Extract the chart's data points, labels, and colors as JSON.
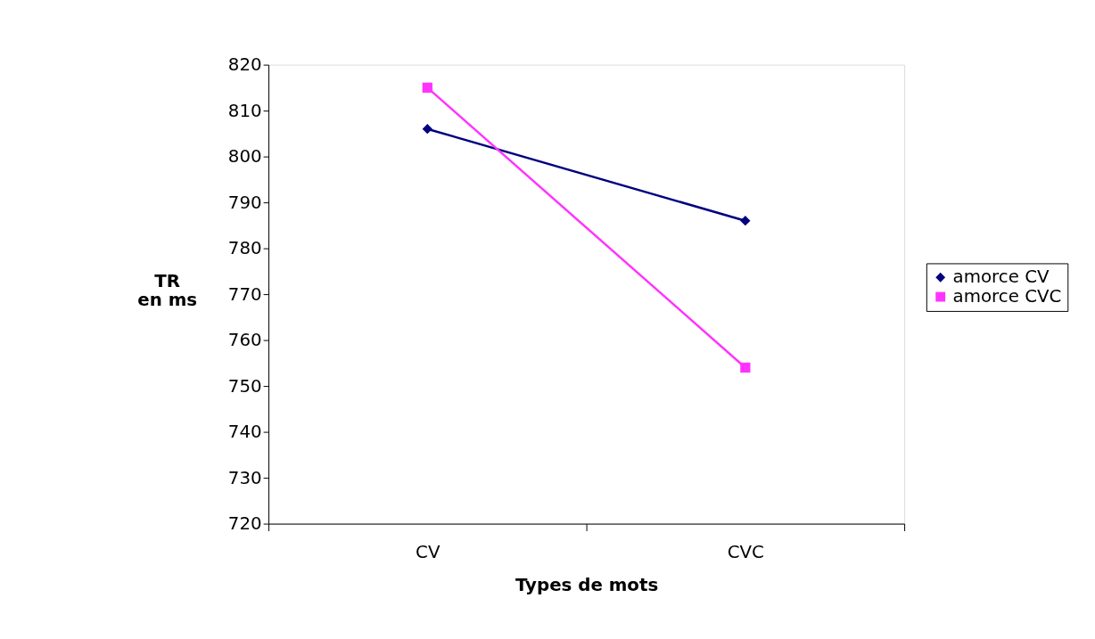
{
  "chart_data": {
    "type": "line",
    "xlabel": "Types de mots",
    "ylabel": "TR\nen ms",
    "categories": [
      "CV",
      "CVC"
    ],
    "series": [
      {
        "name": "amorce CV",
        "color": "#000080",
        "marker": "diamond",
        "values": [
          806,
          786
        ]
      },
      {
        "name": "amorce CVC",
        "color": "#ff33ff",
        "marker": "square",
        "values": [
          815,
          754
        ]
      }
    ],
    "ylim": [
      720,
      820
    ],
    "yticks": [
      720,
      730,
      740,
      750,
      760,
      770,
      780,
      790,
      800,
      810,
      820
    ],
    "grid": false,
    "legend": "right",
    "line_style": "solid"
  }
}
